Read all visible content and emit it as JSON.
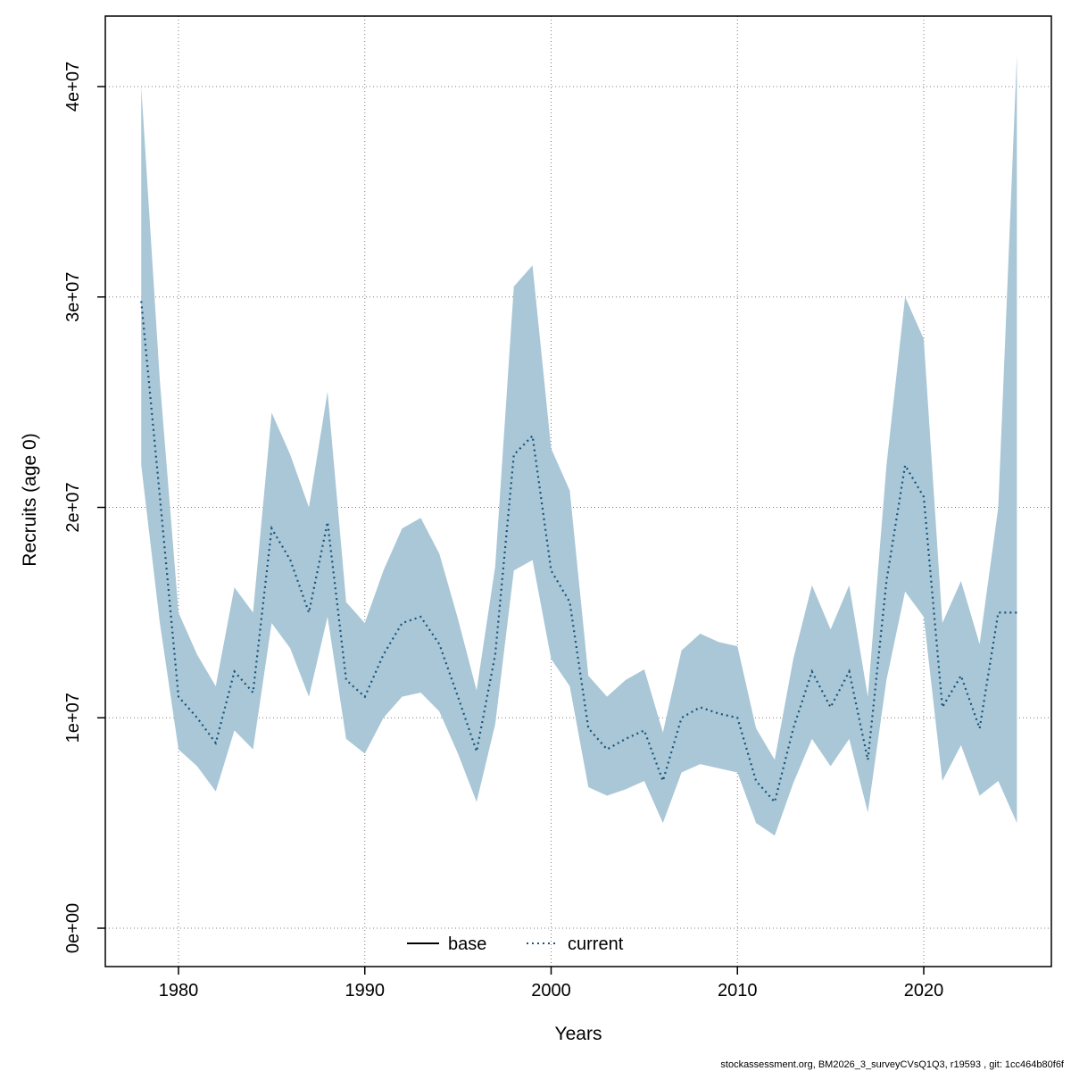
{
  "footer": "stockassessment.org, BM2026_3_surveyCVsQ1Q3, r19593 , git: 1cc464b80f6f",
  "chart_data": {
    "type": "line",
    "title": "",
    "xlabel": "Years",
    "ylabel": "Recruits (age 0)",
    "grid": true,
    "legend_position": "bottom-center-inside",
    "xlim": [
      1976,
      2027
    ],
    "ylim": [
      0,
      41500000
    ],
    "x_ticks": [
      1980,
      1990,
      2000,
      2010,
      2020
    ],
    "y_ticks": [
      {
        "value": 0,
        "label": "0e+00"
      },
      {
        "value": 10000000,
        "label": "1e+07"
      },
      {
        "value": 20000000,
        "label": "2e+07"
      },
      {
        "value": 30000000,
        "label": "3e+07"
      },
      {
        "value": 40000000,
        "label": "4e+07"
      }
    ],
    "colors": {
      "band": "#a9c7d6",
      "current_line": "#17537c",
      "base_line": "#000000",
      "grid": "#7f7f7f",
      "frame": "#000000"
    },
    "legend": [
      {
        "label": "base",
        "style": "solid",
        "color": "#000000"
      },
      {
        "label": "current",
        "style": "dotted",
        "color": "#17537c"
      }
    ],
    "series": [
      {
        "name": "current",
        "style": "dotted",
        "color": "#17537c",
        "band_color": "#a9c7d6",
        "x": [
          1978,
          1979,
          1980,
          1981,
          1982,
          1983,
          1984,
          1985,
          1986,
          1987,
          1988,
          1989,
          1990,
          1991,
          1992,
          1993,
          1994,
          1995,
          1996,
          1997,
          1998,
          1999,
          2000,
          2001,
          2002,
          2003,
          2004,
          2005,
          2006,
          2007,
          2008,
          2009,
          2010,
          2011,
          2012,
          2013,
          2014,
          2015,
          2016,
          2017,
          2018,
          2019,
          2020,
          2021,
          2022,
          2023,
          2024,
          2025
        ],
        "y": [
          29800000,
          20500000,
          11000000,
          10000000,
          8800000,
          12200000,
          11200000,
          19000000,
          17500000,
          15000000,
          19300000,
          11800000,
          11000000,
          13000000,
          14500000,
          14800000,
          13500000,
          11000000,
          8400000,
          13000000,
          22500000,
          23400000,
          17000000,
          15500000,
          9500000,
          8500000,
          9000000,
          9400000,
          7000000,
          10000000,
          10500000,
          10200000,
          10000000,
          7000000,
          6000000,
          9500000,
          12200000,
          10500000,
          12200000,
          8000000,
          16500000,
          22000000,
          20500000,
          10500000,
          12000000,
          9500000,
          15000000,
          15000000
        ],
        "lower": [
          22000000,
          14500000,
          8500000,
          7700000,
          6500000,
          9400000,
          8500000,
          14500000,
          13300000,
          11000000,
          14800000,
          9000000,
          8300000,
          10000000,
          11000000,
          11200000,
          10300000,
          8300000,
          6000000,
          9700000,
          17000000,
          17500000,
          12800000,
          11500000,
          6700000,
          6300000,
          6600000,
          7000000,
          5000000,
          7400000,
          7800000,
          7600000,
          7400000,
          5000000,
          4400000,
          6900000,
          9000000,
          7700000,
          9000000,
          5500000,
          11800000,
          16000000,
          14800000,
          7000000,
          8700000,
          6300000,
          7000000,
          5000000
        ],
        "upper": [
          40000000,
          26000000,
          15000000,
          13000000,
          11500000,
          16200000,
          15000000,
          24500000,
          22500000,
          20000000,
          25500000,
          15500000,
          14500000,
          17000000,
          19000000,
          19500000,
          17800000,
          14700000,
          11300000,
          17200000,
          30500000,
          31500000,
          22800000,
          20800000,
          12000000,
          11000000,
          11800000,
          12300000,
          9300000,
          13200000,
          14000000,
          13600000,
          13400000,
          9500000,
          8000000,
          12800000,
          16300000,
          14200000,
          16300000,
          11000000,
          22000000,
          30000000,
          28000000,
          14500000,
          16500000,
          13500000,
          20000000,
          41500000
        ]
      }
    ]
  }
}
